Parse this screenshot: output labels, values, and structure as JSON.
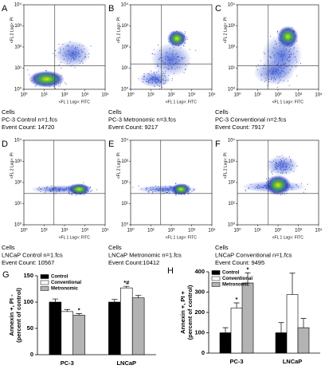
{
  "flow_axes": {
    "xlabel": "<FL 1 Log>: FITC",
    "ylabel": "<FL 2 Log>: PI",
    "xticks": [
      {
        "value": 1,
        "label": "10⁰"
      },
      {
        "value": 10,
        "label": "10¹"
      },
      {
        "value": 100,
        "label": "10²"
      },
      {
        "value": 1000,
        "label": "10³"
      },
      {
        "value": 10000,
        "label": "10⁴"
      }
    ],
    "yticks": [
      {
        "value": 1,
        "label": "10⁰"
      },
      {
        "value": 10,
        "label": "10¹"
      },
      {
        "value": 100,
        "label": "10²"
      },
      {
        "value": 1000,
        "label": "10³"
      },
      {
        "value": 10000,
        "label": "10⁴"
      }
    ]
  },
  "flow_panels": [
    {
      "label": "A",
      "lines": [
        "Cells",
        "PC-3 Control n=1.fcs",
        "Event Count: 14720"
      ]
    },
    {
      "label": "B",
      "lines": [
        "Cells",
        "PC-3 Metronomic n=3.fcs",
        "Event Count: 9217"
      ]
    },
    {
      "label": "C",
      "lines": [
        "Cells",
        "PC-3 Conventional n=2.fcs",
        "Event Count: 7917"
      ]
    },
    {
      "label": "D",
      "lines": [
        "Cells",
        "LNCaP Control n=1.fcs",
        "Event Count: 10567"
      ]
    },
    {
      "label": "E",
      "lines": [
        "Cells",
        "LNCaP Metronomic n=1.fcs",
        "Event Count:10412"
      ]
    },
    {
      "label": "F",
      "lines": [
        "Cells",
        "LNCaP Conventional n=1.fcs",
        "Event Count: 9495"
      ]
    }
  ],
  "chart_data": [
    {
      "type": "bar",
      "label": "G",
      "ylabel": [
        "Annexin +, PI -",
        "(percent of control)"
      ],
      "categories": [
        "PC-3",
        "LNCaP"
      ],
      "ylim": [
        0,
        150
      ],
      "yticks": [
        0,
        50,
        100,
        150
      ],
      "series": [
        {
          "name": "Control",
          "color": "#000000",
          "values": [
            100,
            100
          ],
          "errors": [
            6,
            5
          ],
          "annotations": [
            null,
            null
          ]
        },
        {
          "name": "Conventional",
          "color": "#ffffff",
          "values": [
            82,
            127
          ],
          "errors": [
            4,
            3
          ],
          "annotations": [
            null,
            "*#"
          ]
        },
        {
          "name": "Metronomic",
          "color": "#b3b3b3",
          "values": [
            75,
            108
          ],
          "errors": [
            3,
            5
          ],
          "annotations": [
            "*",
            null
          ]
        }
      ]
    },
    {
      "type": "bar",
      "label": "H",
      "ylabel": [
        "Annexin +, PI +",
        "(percent of control)"
      ],
      "categories": [
        "PC-3",
        "LNCaP"
      ],
      "ylim": [
        0,
        400
      ],
      "yticks": [
        0,
        100,
        200,
        300,
        400
      ],
      "series": [
        {
          "name": "Control",
          "color": "#000000",
          "values": [
            100,
            100
          ],
          "errors": [
            25,
            50
          ],
          "annotations": [
            null,
            null
          ]
        },
        {
          "name": "Conventional",
          "color": "#ffffff",
          "values": [
            222,
            288
          ],
          "errors": [
            25,
            105
          ],
          "annotations": [
            "*",
            null
          ]
        },
        {
          "name": "Metronomic",
          "color": "#b3b3b3",
          "values": [
            345,
            125
          ],
          "errors": [
            50,
            45
          ],
          "annotations": [
            "*",
            null
          ]
        }
      ]
    }
  ]
}
